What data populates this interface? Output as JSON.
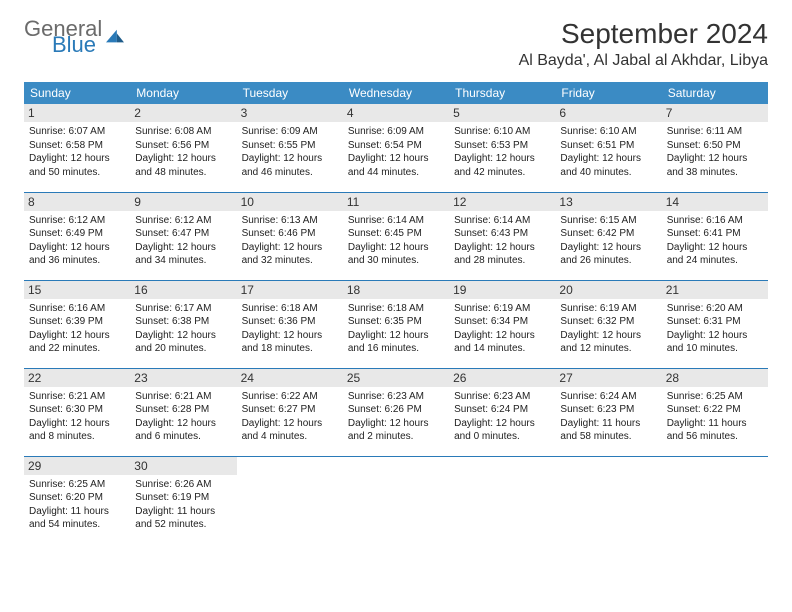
{
  "brand": {
    "general": "General",
    "blue": "Blue"
  },
  "title": "September 2024",
  "location": "Al Bayda', Al Jabal al Akhdar, Libya",
  "colors": {
    "header_bg": "#3b8bc4",
    "header_text": "#ffffff",
    "border": "#2a7ab8",
    "daynum_bg": "#e8e8e8",
    "text": "#222222",
    "logo_gray": "#6b6b6b",
    "logo_blue": "#2a7ab8"
  },
  "weekdays": [
    "Sunday",
    "Monday",
    "Tuesday",
    "Wednesday",
    "Thursday",
    "Friday",
    "Saturday"
  ],
  "days": [
    {
      "n": 1,
      "sr": "6:07 AM",
      "ss": "6:58 PM",
      "dl": "12 hours and 50 minutes."
    },
    {
      "n": 2,
      "sr": "6:08 AM",
      "ss": "6:56 PM",
      "dl": "12 hours and 48 minutes."
    },
    {
      "n": 3,
      "sr": "6:09 AM",
      "ss": "6:55 PM",
      "dl": "12 hours and 46 minutes."
    },
    {
      "n": 4,
      "sr": "6:09 AM",
      "ss": "6:54 PM",
      "dl": "12 hours and 44 minutes."
    },
    {
      "n": 5,
      "sr": "6:10 AM",
      "ss": "6:53 PM",
      "dl": "12 hours and 42 minutes."
    },
    {
      "n": 6,
      "sr": "6:10 AM",
      "ss": "6:51 PM",
      "dl": "12 hours and 40 minutes."
    },
    {
      "n": 7,
      "sr": "6:11 AM",
      "ss": "6:50 PM",
      "dl": "12 hours and 38 minutes."
    },
    {
      "n": 8,
      "sr": "6:12 AM",
      "ss": "6:49 PM",
      "dl": "12 hours and 36 minutes."
    },
    {
      "n": 9,
      "sr": "6:12 AM",
      "ss": "6:47 PM",
      "dl": "12 hours and 34 minutes."
    },
    {
      "n": 10,
      "sr": "6:13 AM",
      "ss": "6:46 PM",
      "dl": "12 hours and 32 minutes."
    },
    {
      "n": 11,
      "sr": "6:14 AM",
      "ss": "6:45 PM",
      "dl": "12 hours and 30 minutes."
    },
    {
      "n": 12,
      "sr": "6:14 AM",
      "ss": "6:43 PM",
      "dl": "12 hours and 28 minutes."
    },
    {
      "n": 13,
      "sr": "6:15 AM",
      "ss": "6:42 PM",
      "dl": "12 hours and 26 minutes."
    },
    {
      "n": 14,
      "sr": "6:16 AM",
      "ss": "6:41 PM",
      "dl": "12 hours and 24 minutes."
    },
    {
      "n": 15,
      "sr": "6:16 AM",
      "ss": "6:39 PM",
      "dl": "12 hours and 22 minutes."
    },
    {
      "n": 16,
      "sr": "6:17 AM",
      "ss": "6:38 PM",
      "dl": "12 hours and 20 minutes."
    },
    {
      "n": 17,
      "sr": "6:18 AM",
      "ss": "6:36 PM",
      "dl": "12 hours and 18 minutes."
    },
    {
      "n": 18,
      "sr": "6:18 AM",
      "ss": "6:35 PM",
      "dl": "12 hours and 16 minutes."
    },
    {
      "n": 19,
      "sr": "6:19 AM",
      "ss": "6:34 PM",
      "dl": "12 hours and 14 minutes."
    },
    {
      "n": 20,
      "sr": "6:19 AM",
      "ss": "6:32 PM",
      "dl": "12 hours and 12 minutes."
    },
    {
      "n": 21,
      "sr": "6:20 AM",
      "ss": "6:31 PM",
      "dl": "12 hours and 10 minutes."
    },
    {
      "n": 22,
      "sr": "6:21 AM",
      "ss": "6:30 PM",
      "dl": "12 hours and 8 minutes."
    },
    {
      "n": 23,
      "sr": "6:21 AM",
      "ss": "6:28 PM",
      "dl": "12 hours and 6 minutes."
    },
    {
      "n": 24,
      "sr": "6:22 AM",
      "ss": "6:27 PM",
      "dl": "12 hours and 4 minutes."
    },
    {
      "n": 25,
      "sr": "6:23 AM",
      "ss": "6:26 PM",
      "dl": "12 hours and 2 minutes."
    },
    {
      "n": 26,
      "sr": "6:23 AM",
      "ss": "6:24 PM",
      "dl": "12 hours and 0 minutes."
    },
    {
      "n": 27,
      "sr": "6:24 AM",
      "ss": "6:23 PM",
      "dl": "11 hours and 58 minutes."
    },
    {
      "n": 28,
      "sr": "6:25 AM",
      "ss": "6:22 PM",
      "dl": "11 hours and 56 minutes."
    },
    {
      "n": 29,
      "sr": "6:25 AM",
      "ss": "6:20 PM",
      "dl": "11 hours and 54 minutes."
    },
    {
      "n": 30,
      "sr": "6:26 AM",
      "ss": "6:19 PM",
      "dl": "11 hours and 52 minutes."
    }
  ],
  "labels": {
    "sunrise": "Sunrise:",
    "sunset": "Sunset:",
    "daylight": "Daylight:"
  },
  "layout": {
    "start_weekday": 0,
    "cols": 7
  }
}
